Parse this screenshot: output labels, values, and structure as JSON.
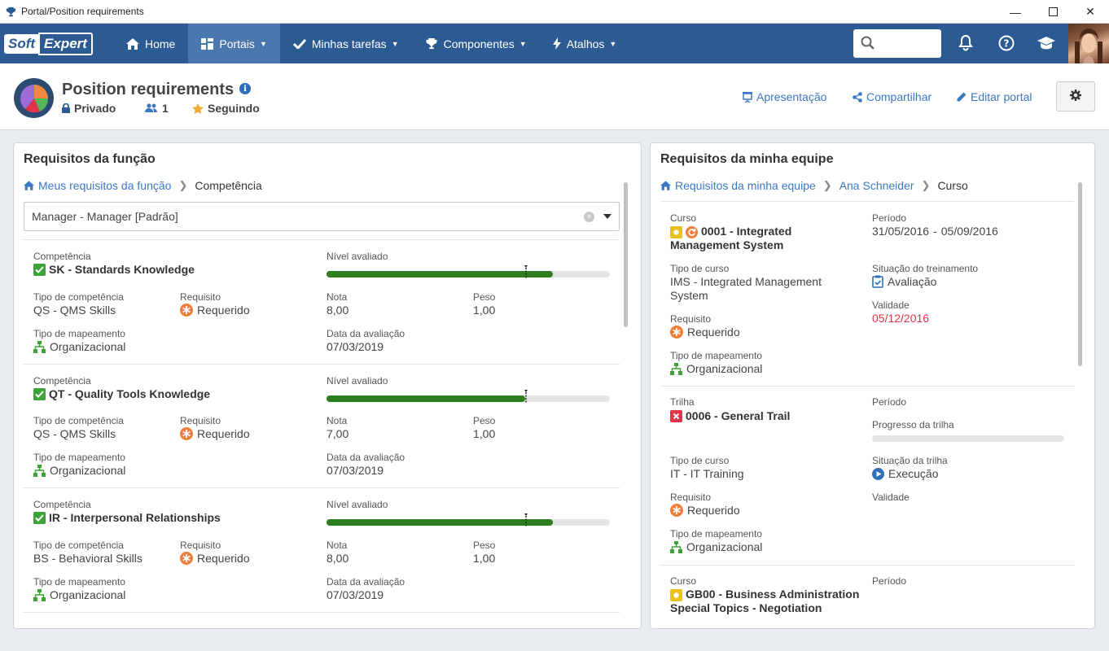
{
  "window": {
    "title": "Portal/Position requirements"
  },
  "nav": {
    "logo_soft": "Soft",
    "logo_expert": "Expert",
    "items": [
      {
        "label": "Home"
      },
      {
        "label": "Portais"
      },
      {
        "label": "Minhas tarefas"
      },
      {
        "label": "Componentes"
      },
      {
        "label": "Atalhos"
      }
    ]
  },
  "header": {
    "title": "Position requirements",
    "privacy": "Privado",
    "members": "1",
    "following": "Seguindo",
    "presentation": "Apresentação",
    "share": "Compartilhar",
    "edit": "Editar portal"
  },
  "left": {
    "title": "Requisitos da função",
    "breadcrumb_link": "Meus requisitos da função",
    "breadcrumb_current": "Competência",
    "select_value": "Manager - Manager [Padrão]",
    "labels": {
      "competency": "Competência",
      "level": "Nível avaliado",
      "competency_type": "Tipo de competência",
      "requirement": "Requisito",
      "grade": "Nota",
      "weight": "Peso",
      "mapping_type": "Tipo de mapeamento",
      "eval_date": "Data da avaliação"
    },
    "items": [
      {
        "name": "SK - Standards Knowledge",
        "type": "QS - QMS Skills",
        "requirement": "Requerido",
        "grade": "8,00",
        "weight": "1,00",
        "mapping": "Organizacional",
        "date": "07/03/2019",
        "level": 0.8,
        "target": 0.7
      },
      {
        "name": "QT - Quality Tools Knowledge",
        "type": "QS - QMS Skills",
        "requirement": "Requerido",
        "grade": "7,00",
        "weight": "1,00",
        "mapping": "Organizacional",
        "date": "07/03/2019",
        "level": 0.7,
        "target": 0.7
      },
      {
        "name": "IR - Interpersonal Relationships",
        "type": "BS - Behavioral Skills",
        "requirement": "Requerido",
        "grade": "8,00",
        "weight": "1,00",
        "mapping": "Organizacional",
        "date": "07/03/2019",
        "level": 0.8,
        "target": 0.7
      }
    ]
  },
  "right": {
    "title": "Requisitos da minha equipe",
    "breadcrumb_link1": "Requisitos da minha equipe",
    "breadcrumb_link2": "Ana Schneider",
    "breadcrumb_current": "Curso",
    "card1": {
      "kind_label": "Curso",
      "name_line1": "0001 - Integrated",
      "name_line2": "Management System",
      "period_label": "Período",
      "period": "31/05/2016",
      "period_dash": "-",
      "period_end": "05/09/2016",
      "course_type_label": "Tipo de curso",
      "course_type_line1": "IMS - Integrated Management",
      "course_type_line2": "System",
      "training_status_label": "Situação do treinamento",
      "training_status": "Avaliação",
      "requirement_label": "Requisito",
      "requirement": "Requerido",
      "validity_label": "Validade",
      "validity": "05/12/2016",
      "mapping_label": "Tipo de mapeamento",
      "mapping": "Organizacional"
    },
    "card2": {
      "kind_label": "Trilha",
      "name": "0006 - General Trail",
      "period_label": "Período",
      "progress_label": "Progresso da trilha",
      "progress": 0,
      "course_type_label": "Tipo de curso",
      "course_type": "IT - IT Training",
      "trail_status_label": "Situação da trilha",
      "trail_status": "Execução",
      "requirement_label": "Requisito",
      "requirement": "Requerido",
      "validity_label": "Validade",
      "mapping_label": "Tipo de mapeamento",
      "mapping": "Organizacional"
    },
    "card3": {
      "kind_label": "Curso",
      "name_line1": "GB00 - Business Administration",
      "name_line2": "Special Topics - Negotiation",
      "period_label": "Período"
    }
  },
  "colors": {
    "nav": "#2b5b92",
    "accent": "#3b78c3",
    "bar": "#2e7d1f",
    "required": "#ef7e3c",
    "success": "#3da338",
    "danger": "#e0344a"
  }
}
